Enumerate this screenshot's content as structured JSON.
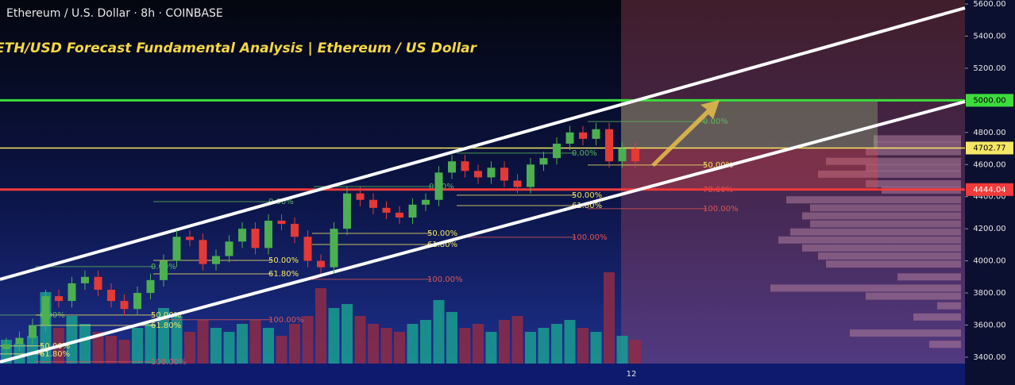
{
  "chart_data": {
    "type": "candlestick",
    "header": "Ethereum / U.S. Dollar · 8h · COINBASE",
    "title": "ETH/USD Forecast Fundamental Analysis | Ethereum / US Dollar",
    "open": [
      3450,
      3480,
      3520,
      3600,
      3780,
      3750,
      3860,
      3900,
      3820,
      3750,
      3700,
      3800,
      3880,
      4000,
      4150,
      4130,
      3980,
      4030,
      4120,
      4200,
      4080,
      4250,
      4230,
      4150,
      4000,
      3960,
      4200,
      4420,
      4380,
      4330,
      4300,
      4270,
      4350,
      4380,
      4550,
      4620,
      4560,
      4520,
      4580,
      4500,
      4460,
      4600,
      4640,
      4730,
      4800,
      4760,
      4820,
      4620,
      4700
    ],
    "high": [
      3520,
      3560,
      3640,
      3820,
      3820,
      3900,
      3940,
      3940,
      3860,
      3790,
      3840,
      3920,
      4040,
      4190,
      4190,
      4170,
      4070,
      4160,
      4240,
      4240,
      4290,
      4290,
      4270,
      4190,
      4040,
      4240,
      4460,
      4460,
      4420,
      4370,
      4340,
      4390,
      4420,
      4590,
      4660,
      4660,
      4600,
      4620,
      4620,
      4540,
      4640,
      4680,
      4770,
      4840,
      4840,
      4860,
      4860,
      4740,
      4740
    ],
    "low": [
      3410,
      3440,
      3480,
      3560,
      3710,
      3710,
      3820,
      3780,
      3710,
      3660,
      3660,
      3760,
      3840,
      3960,
      4090,
      3940,
      3940,
      3990,
      4080,
      4040,
      4040,
      4190,
      4110,
      3960,
      3920,
      3920,
      4160,
      4340,
      4290,
      4260,
      4230,
      4230,
      4310,
      4340,
      4510,
      4520,
      4480,
      4480,
      4460,
      4420,
      4420,
      4560,
      4600,
      4690,
      4720,
      4720,
      4580,
      4580,
      4580
    ],
    "close": [
      3480,
      3520,
      3600,
      3780,
      3750,
      3860,
      3900,
      3820,
      3750,
      3700,
      3800,
      3880,
      4000,
      4150,
      4130,
      3980,
      4030,
      4120,
      4200,
      4080,
      4250,
      4230,
      4150,
      4000,
      3960,
      4200,
      4420,
      4380,
      4330,
      4300,
      4270,
      4350,
      4380,
      4550,
      4620,
      4560,
      4520,
      4580,
      4500,
      4460,
      4600,
      4640,
      4730,
      4800,
      4760,
      4820,
      4620,
      4700,
      4620
    ],
    "volume": [
      30,
      25,
      35,
      90,
      45,
      60,
      50,
      40,
      35,
      30,
      45,
      50,
      70,
      60,
      40,
      55,
      45,
      40,
      50,
      55,
      45,
      35,
      50,
      60,
      95,
      70,
      75,
      60,
      50,
      45,
      40,
      50,
      55,
      80,
      65,
      45,
      50,
      40,
      55,
      60,
      40,
      45,
      50,
      55,
      45,
      40,
      115,
      35,
      30
    ],
    "up_color": "#4caf50",
    "down_color": "#e53935",
    "up_volume_color": "#1a9e8f",
    "down_volume_color": "#8e2b45",
    "ylim": [
      3360,
      5625
    ],
    "yticks": [
      {
        "value": 3400,
        "label": "3400.00"
      },
      {
        "value": 3600,
        "label": "3600.00"
      },
      {
        "value": 3800,
        "label": "3800.00"
      },
      {
        "value": 4000,
        "label": "4000.00"
      },
      {
        "value": 4200,
        "label": "4200.00"
      },
      {
        "value": 4400,
        "label": "4400.00"
      },
      {
        "value": 4600,
        "label": "4600.00"
      },
      {
        "value": 4800,
        "label": "4800.00"
      },
      {
        "value": 5000,
        "label": "5000.00"
      },
      {
        "value": 5200,
        "label": "5200.00"
      },
      {
        "value": 5400,
        "label": "5400.00"
      },
      {
        "value": 5600,
        "label": "5600.00"
      }
    ],
    "xticks": [
      {
        "index": 48,
        "label": "12"
      }
    ],
    "levels": [
      {
        "value": 5000,
        "label": "5000.00",
        "color": "#3ddc3d"
      },
      {
        "value": 4702.77,
        "label": "4702.77",
        "color": "#f5e663"
      },
      {
        "value": 4444.04,
        "label": "4444.04",
        "color": "#f03b3b"
      }
    ],
    "fib_labels": [
      {
        "label": "0.00%",
        "price": 3662,
        "color": "#5cb85c"
      },
      {
        "label": "50.00%",
        "price": 3662,
        "color": "#f5e663"
      },
      {
        "label": "61.80%",
        "price": 3598,
        "color": "#f5e663"
      },
      {
        "label": "100.00%",
        "price": 3633,
        "color": "#e05555"
      },
      {
        "label": "50.00%",
        "price": 3470,
        "color": "#f5e663"
      },
      {
        "label": "61.80%",
        "price": 3420,
        "color": "#f5e663"
      },
      {
        "label": "100.00%",
        "price": 3371,
        "color": "#e05555"
      },
      {
        "label": "0.00%",
        "price": 3964,
        "color": "#5cb85c"
      },
      {
        "label": "50.00%",
        "price": 4003,
        "color": "#f5e663"
      },
      {
        "label": "61.80%",
        "price": 3919,
        "color": "#f5e663"
      },
      {
        "label": "100.00%",
        "price": 3885,
        "color": "#e05555"
      },
      {
        "label": "0.00%",
        "price": 4369,
        "color": "#5cb85c"
      },
      {
        "label": "50.00%",
        "price": 4171,
        "color": "#f5e663"
      },
      {
        "label": "61.80%",
        "price": 4102,
        "color": "#f5e663"
      },
      {
        "label": "100.00%",
        "price": 4147,
        "color": "#e05555"
      },
      {
        "label": "0.00%",
        "price": 4463,
        "color": "#5cb85c"
      },
      {
        "label": "50.00%",
        "price": 4409,
        "color": "#f5e663"
      },
      {
        "label": "61.80%",
        "price": 4344,
        "color": "#f5e663"
      },
      {
        "label": "100.00%",
        "price": 4325,
        "color": "#e05555"
      },
      {
        "label": "0.00%",
        "price": 4671,
        "color": "#5cb85c"
      },
      {
        "label": "50.00%",
        "price": 4597,
        "color": "#f5e663"
      },
      {
        "label": "78.60%",
        "price": 4443,
        "color": "#e05555"
      },
      {
        "label": "0.00%",
        "price": 4868,
        "color": "#5cb85c"
      }
    ],
    "volume_profile": {
      "prices": [
        4760,
        4720,
        4680,
        4620,
        4580,
        4540,
        4480,
        4440,
        4380,
        4330,
        4280,
        4230,
        4180,
        4130,
        4080,
        4030,
        3980,
        3900,
        3830,
        3780,
        3720,
        3650,
        3550,
        3480
      ],
      "sizes": [
        110,
        110,
        120,
        170,
        120,
        180,
        120,
        100,
        220,
        190,
        200,
        190,
        215,
        230,
        200,
        180,
        170,
        80,
        240,
        120,
        30,
        60,
        140,
        40
      ]
    }
  }
}
